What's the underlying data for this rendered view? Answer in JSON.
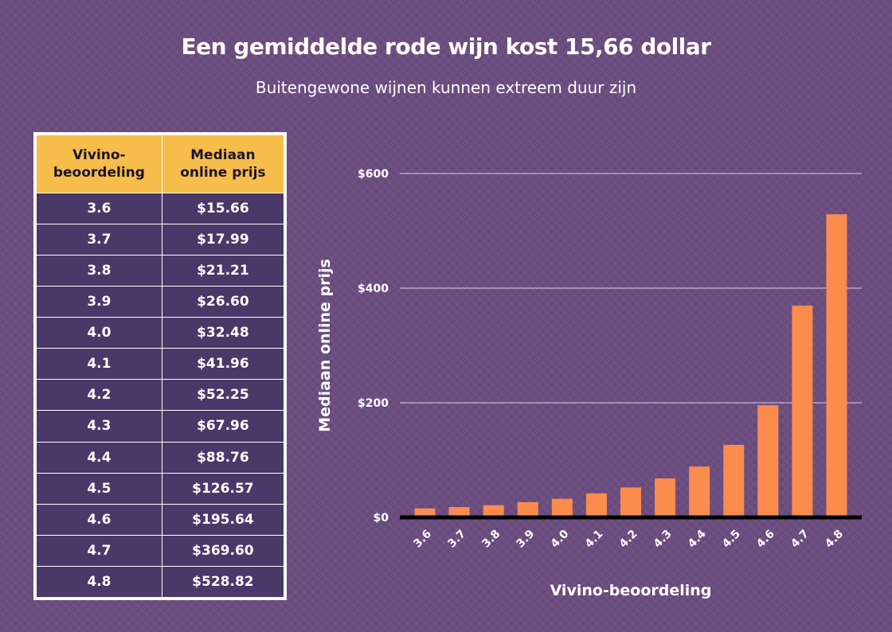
{
  "title": "Een gemiddelde rode wijn kost 15,66 dollar",
  "subtitle": "Buitengewone wijnen kunnen extreem duur zijn",
  "table": {
    "headers": [
      "Vivino-beoordeling",
      "Mediaan online prijs"
    ],
    "rows": [
      [
        "3.6",
        "$15.66"
      ],
      [
        "3.7",
        "$17.99"
      ],
      [
        "3.8",
        "$21.21"
      ],
      [
        "3.9",
        "$26.60"
      ],
      [
        "4.0",
        "$32.48"
      ],
      [
        "4.1",
        "$41.96"
      ],
      [
        "4.2",
        "$52.25"
      ],
      [
        "4.3",
        "$67.96"
      ],
      [
        "4.4",
        "$88.76"
      ],
      [
        "4.5",
        "$126.57"
      ],
      [
        "4.6",
        "$195.64"
      ],
      [
        "4.7",
        "$369.60"
      ],
      [
        "4.8",
        "$528.82"
      ]
    ]
  },
  "colors": {
    "background": "#6b4d80",
    "bar": "#fb8c4d",
    "header": "#f6bd4a",
    "table_cell": "#4a3868"
  },
  "chart_data": {
    "type": "bar",
    "categories": [
      "3.6",
      "3.7",
      "3.8",
      "3.9",
      "4.0",
      "4.1",
      "4.2",
      "4.3",
      "4.4",
      "4.5",
      "4.6",
      "4.7",
      "4.8"
    ],
    "values": [
      15.66,
      17.99,
      21.21,
      26.6,
      32.48,
      41.96,
      52.25,
      67.96,
      88.76,
      126.57,
      195.64,
      369.6,
      528.82
    ],
    "xlabel": "Vivino-beoordeling",
    "ylabel": "Mediaan online prijs",
    "ylim": [
      0,
      600
    ],
    "yticks": [
      0,
      200,
      400,
      600
    ],
    "ytick_labels": [
      "$0",
      "$200",
      "$400",
      "$600"
    ],
    "grid": true
  }
}
